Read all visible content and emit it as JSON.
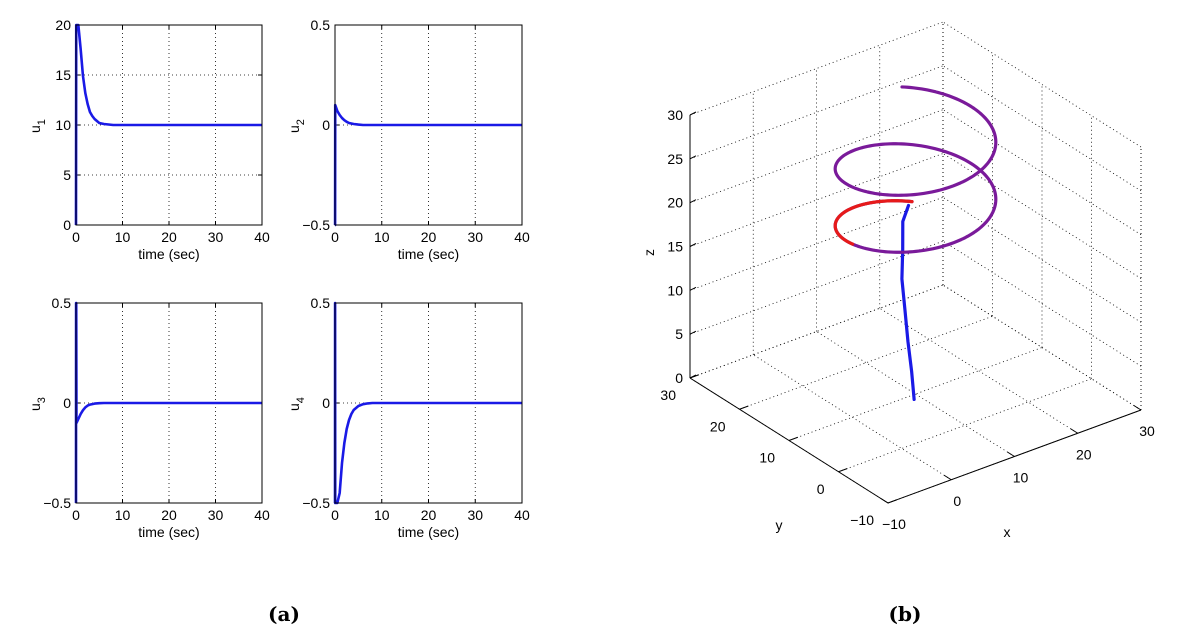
{
  "captions": {
    "left": "(a)",
    "right": "(b)"
  },
  "colors": {
    "blue": "#1a1ae6",
    "red": "#e61a1a",
    "purple": "#7a1a9a"
  },
  "chart_data": [
    {
      "type": "line",
      "id": "u1",
      "xlabel": "time (sec)",
      "ylabel": "u",
      "ylabel_sub": "1",
      "xlim": [
        0,
        40
      ],
      "ylim": [
        0,
        20
      ],
      "xticks": [
        0,
        10,
        20,
        30,
        40
      ],
      "yticks": [
        0,
        5,
        10,
        15,
        20
      ],
      "grid": true,
      "series": [
        {
          "x": [
            0,
            0.05,
            0.5,
            1,
            1.5,
            2,
            2.5,
            3,
            3.5,
            4,
            5,
            6,
            7,
            8,
            10,
            15,
            20,
            30,
            40
          ],
          "y": [
            0,
            20,
            20,
            17.6,
            14.9,
            13.2,
            12.1,
            11.3,
            10.9,
            10.6,
            10.2,
            10.1,
            10.05,
            10,
            10,
            10,
            10,
            10,
            10
          ]
        }
      ]
    },
    {
      "type": "line",
      "id": "u2",
      "xlabel": "time (sec)",
      "ylabel": "u",
      "ylabel_sub": "2",
      "xlim": [
        0,
        40
      ],
      "ylim": [
        -0.5,
        0.5
      ],
      "xticks": [
        0,
        10,
        20,
        30,
        40
      ],
      "yticks": [
        -0.5,
        0,
        0.5
      ],
      "grid": true,
      "series": [
        {
          "x": [
            0,
            0.02,
            0.05,
            0.2,
            0.5,
            1,
            1.5,
            2,
            2.5,
            3,
            4,
            5,
            6,
            8,
            10,
            20,
            30,
            40
          ],
          "y": [
            -0.5,
            -0.5,
            0.1,
            0.09,
            0.07,
            0.05,
            0.035,
            0.024,
            0.016,
            0.01,
            0.005,
            0.002,
            0,
            0,
            0,
            0,
            0,
            0
          ]
        }
      ]
    },
    {
      "type": "line",
      "id": "u3",
      "xlabel": "time (sec)",
      "ylabel": "u",
      "ylabel_sub": "3",
      "xlim": [
        0,
        40
      ],
      "ylim": [
        -0.5,
        0.5
      ],
      "xticks": [
        0,
        10,
        20,
        30,
        40
      ],
      "yticks": [
        -0.5,
        0,
        0.5
      ],
      "grid": true,
      "series": [
        {
          "x": [
            0,
            0.02,
            0.05,
            0.1,
            0.3,
            0.6,
            1,
            1.5,
            2,
            2.5,
            3,
            4,
            5,
            6,
            8,
            10,
            20,
            30,
            40
          ],
          "y": [
            -0.5,
            0.5,
            0.5,
            -0.1,
            -0.09,
            -0.075,
            -0.055,
            -0.036,
            -0.022,
            -0.013,
            -0.008,
            -0.003,
            -0.001,
            0,
            0,
            0,
            0,
            0,
            0
          ]
        }
      ]
    },
    {
      "type": "line",
      "id": "u4",
      "xlabel": "time (sec)",
      "ylabel": "u",
      "ylabel_sub": "4",
      "xlim": [
        0,
        40
      ],
      "ylim": [
        -0.5,
        0.5
      ],
      "xticks": [
        0,
        10,
        20,
        30,
        40
      ],
      "yticks": [
        -0.5,
        0,
        0.5
      ],
      "grid": true,
      "series": [
        {
          "x": [
            0,
            0.02,
            0.05,
            0.1,
            0.5,
            1,
            1.5,
            2,
            2.5,
            3,
            3.5,
            4,
            5,
            6,
            7,
            8,
            10,
            20,
            30,
            40
          ],
          "y": [
            -0.5,
            0.5,
            -0.5,
            -0.5,
            -0.5,
            -0.45,
            -0.3,
            -0.2,
            -0.13,
            -0.085,
            -0.055,
            -0.035,
            -0.015,
            -0.006,
            -0.002,
            0,
            0,
            0,
            0,
            0
          ]
        }
      ]
    },
    {
      "type": "line3d",
      "id": "trajectory",
      "xlabel": "x",
      "ylabel": "y",
      "zlabel": "z",
      "xlim": [
        -10,
        30
      ],
      "ylim": [
        -10,
        30
      ],
      "zlim": [
        0,
        30
      ],
      "xticks": [
        -10,
        0,
        10,
        20,
        30
      ],
      "yticks": [
        -10,
        0,
        10,
        20,
        30
      ],
      "zticks": [
        0,
        5,
        10,
        15,
        20,
        25,
        30
      ],
      "grid": true,
      "series": [
        {
          "name": "",
          "color": "blue",
          "kind": "approach",
          "points": [
            [
              9,
              9,
              0
            ],
            [
              9,
              9.5,
              3
            ],
            [
              9.2,
              10.5,
              6
            ],
            [
              9.6,
              11.6,
              9
            ],
            [
              10.2,
              13,
              12
            ],
            [
              11.5,
              14.5,
              14.5
            ],
            [
              13,
              16.4,
              16.6
            ],
            [
              15,
              17.8,
              17.4
            ]
          ]
        },
        {
          "name": "",
          "color": "purple",
          "kind": "helix",
          "helix": {
            "cx": 10,
            "cy": 10,
            "r": 10,
            "z0": 17.5,
            "pitch": 6.5,
            "turns": 2.02,
            "phase": 0.95
          }
        },
        {
          "name": "",
          "color": "red",
          "kind": "reference",
          "helix": {
            "cx": 10,
            "cy": 10,
            "r": 10,
            "z0": 17.5,
            "pitch": 6.5,
            "turns": 0.35,
            "phase": 0.95
          }
        }
      ]
    }
  ]
}
